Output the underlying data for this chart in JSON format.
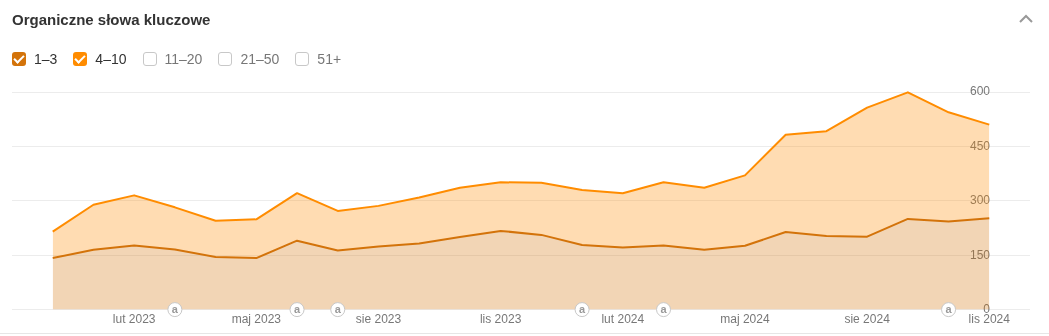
{
  "chart_data": {
    "type": "area",
    "title": "Organiczne słowa kluczowe",
    "stacked": true,
    "grid": "y",
    "legend": "top left",
    "x": [
      "2022-12",
      "2023-01",
      "2023-02",
      "2023-03",
      "2023-04",
      "2023-05",
      "2023-06",
      "2023-07",
      "2023-08",
      "2023-09",
      "2023-10",
      "2023-11",
      "2023-12",
      "2024-01",
      "2024-02",
      "2024-03",
      "2024-04",
      "2024-05",
      "2024-06",
      "2024-07",
      "2024-08",
      "2024-09",
      "2024-10",
      "2024-11"
    ],
    "xlim": [
      "2022-11",
      "2024-12"
    ],
    "xticks": [
      {
        "value": "2023-02",
        "label": "lut 2023"
      },
      {
        "value": "2023-05",
        "label": "maj 2023"
      },
      {
        "value": "2023-08",
        "label": "sie 2023"
      },
      {
        "value": "2023-11",
        "label": "lis 2023"
      },
      {
        "value": "2024-02",
        "label": "lut 2024"
      },
      {
        "value": "2024-05",
        "label": "maj 2024"
      },
      {
        "value": "2024-08",
        "label": "sie 2024"
      },
      {
        "value": "2024-11",
        "label": "lis 2024"
      }
    ],
    "ylim": [
      0,
      600
    ],
    "yticks": [
      0,
      150,
      300,
      450,
      600
    ],
    "series": [
      {
        "name": "1–3",
        "color": "#d3730a",
        "values": [
          142,
          165,
          177,
          166,
          145,
          142,
          190,
          163,
          174,
          182,
          200,
          217,
          206,
          178,
          171,
          177,
          165,
          176,
          214,
          203,
          201,
          250,
          243,
          252
        ]
      },
      {
        "name": "4–10",
        "color": "#ff8c00",
        "values": [
          73,
          124,
          138,
          116,
          100,
          107,
          131,
          109,
          112,
          127,
          136,
          134,
          144,
          152,
          150,
          174,
          171,
          194,
          268,
          289,
          356,
          349,
          301,
          258
        ]
      },
      {
        "name": "11–20",
        "values": [
          null,
          null,
          null,
          null,
          null,
          null,
          null,
          null,
          null,
          null,
          null,
          null,
          null,
          null,
          null,
          null,
          null,
          null,
          null,
          null,
          null,
          null,
          null,
          null
        ]
      },
      {
        "name": "21–50",
        "values": [
          null,
          null,
          null,
          null,
          null,
          null,
          null,
          null,
          null,
          null,
          null,
          null,
          null,
          null,
          null,
          null,
          null,
          null,
          null,
          null,
          null,
          null,
          null,
          null
        ]
      },
      {
        "name": "51+",
        "values": [
          null,
          null,
          null,
          null,
          null,
          null,
          null,
          null,
          null,
          null,
          null,
          null,
          null,
          null,
          null,
          null,
          null,
          null,
          null,
          null,
          null,
          null,
          null,
          null
        ]
      }
    ],
    "annotations": [
      {
        "text": "a",
        "x": "2023-03"
      },
      {
        "text": "a",
        "x": "2023-06"
      },
      {
        "text": "a",
        "x": "2023-07"
      },
      {
        "text": "a",
        "x": "2024-01"
      },
      {
        "text": "a",
        "x": "2024-03"
      },
      {
        "text": "a",
        "x": "2024-10"
      }
    ]
  }
}
